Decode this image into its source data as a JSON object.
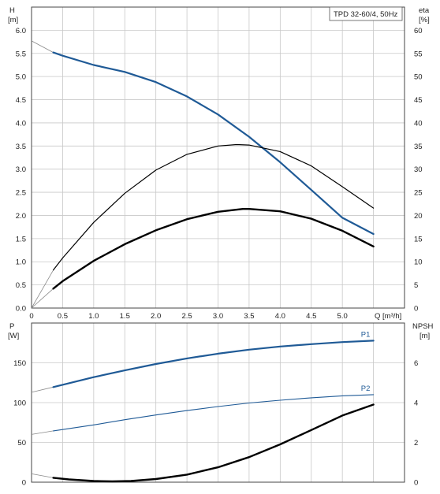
{
  "title": "TPD 32-60/4, 50Hz",
  "colors": {
    "grid": "#c8c8c8",
    "frame": "#444444",
    "blue": "#1f5a96",
    "black": "#000000",
    "thin_extension": "#8a8a8a"
  },
  "chart_data": [
    {
      "type": "line",
      "name": "Head and efficiency",
      "xlabel": "Q [m³/h]",
      "ylabel_left_name": "H",
      "ylabel_left_unit": "[m]",
      "ylabel_right_name": "eta",
      "ylabel_right_unit": "[%]",
      "xlim": [
        0,
        6
      ],
      "ylim_left": [
        0,
        6.5
      ],
      "ylim_right": [
        0,
        65
      ],
      "grid": true,
      "x_ticks": [
        "0",
        "0.5",
        "1.0",
        "1.5",
        "2.0",
        "2.5",
        "3.0",
        "3.5",
        "4.0",
        "4.5",
        "5.0"
      ],
      "y_ticks_left": [
        "0.0",
        "0.5",
        "1.0",
        "1.5",
        "2.0",
        "2.5",
        "3.0",
        "3.5",
        "4.0",
        "4.5",
        "5.0",
        "5.5",
        "6.0"
      ],
      "y_ticks_right": [
        "0",
        "5",
        "10",
        "15",
        "20",
        "25",
        "30",
        "35",
        "40",
        "45",
        "50",
        "55",
        "60"
      ],
      "series": [
        {
          "key": "head",
          "axis": "left",
          "color": "blue",
          "width": 2.2,
          "points": [
            [
              0.35,
              5.52
            ],
            [
              0.5,
              5.45
            ],
            [
              1.0,
              5.25
            ],
            [
              1.5,
              5.1
            ],
            [
              2.0,
              4.88
            ],
            [
              2.5,
              4.57
            ],
            [
              3.0,
              4.18
            ],
            [
              3.5,
              3.7
            ],
            [
              4.0,
              3.15
            ],
            [
              4.5,
              2.55
            ],
            [
              5.0,
              1.95
            ],
            [
              5.5,
              1.6
            ]
          ],
          "extension": [
            [
              0.0,
              5.77
            ],
            [
              0.35,
              5.52
            ]
          ]
        },
        {
          "key": "eta_total",
          "axis": "right",
          "color": "black",
          "width": 1.2,
          "points": [
            [
              0.35,
              8.2
            ],
            [
              0.5,
              10.8
            ],
            [
              1.0,
              18.5
            ],
            [
              1.5,
              24.8
            ],
            [
              2.0,
              29.8
            ],
            [
              2.5,
              33.2
            ],
            [
              3.0,
              35.0
            ],
            [
              3.3,
              35.3
            ],
            [
              3.5,
              35.2
            ],
            [
              4.0,
              33.8
            ],
            [
              4.5,
              30.7
            ],
            [
              5.0,
              26.2
            ],
            [
              5.5,
              21.6
            ]
          ],
          "extension": [
            [
              0.0,
              0.0
            ],
            [
              0.35,
              8.2
            ]
          ]
        },
        {
          "key": "eta_hydraulic",
          "axis": "right",
          "color": "black",
          "width": 2.4,
          "points": [
            [
              0.35,
              4.2
            ],
            [
              0.5,
              5.8
            ],
            [
              1.0,
              10.2
            ],
            [
              1.5,
              13.8
            ],
            [
              2.0,
              16.8
            ],
            [
              2.5,
              19.2
            ],
            [
              3.0,
              20.8
            ],
            [
              3.4,
              21.4
            ],
            [
              3.5,
              21.4
            ],
            [
              4.0,
              20.9
            ],
            [
              4.5,
              19.3
            ],
            [
              5.0,
              16.7
            ],
            [
              5.5,
              13.3
            ]
          ],
          "extension": [
            [
              0.0,
              0.0
            ],
            [
              0.35,
              4.2
            ]
          ]
        }
      ]
    },
    {
      "type": "line",
      "name": "Power and NPSH",
      "ylabel_left_name": "P",
      "ylabel_left_unit": "[W]",
      "ylabel_right_name": "NPSH",
      "ylabel_right_unit": "[m]",
      "xlim": [
        0,
        6
      ],
      "ylim_left": [
        0,
        200
      ],
      "ylim_right": [
        0,
        8
      ],
      "grid": true,
      "y_ticks_left": [
        "0",
        "50",
        "100",
        "150"
      ],
      "y_ticks_right": [
        "0",
        "2",
        "4",
        "6"
      ],
      "series": [
        {
          "key": "P1",
          "label": "P1",
          "axis": "left",
          "color": "blue",
          "width": 2.2,
          "points": [
            [
              0.35,
              119.5
            ],
            [
              1.0,
              132.0
            ],
            [
              1.5,
              140.5
            ],
            [
              2.0,
              148.5
            ],
            [
              2.5,
              155.5
            ],
            [
              3.0,
              161.5
            ],
            [
              3.5,
              166.5
            ],
            [
              4.0,
              170.5
            ],
            [
              4.5,
              173.5
            ],
            [
              5.0,
              176.0
            ],
            [
              5.5,
              177.8
            ]
          ],
          "extension": [
            [
              0.0,
              113.0
            ],
            [
              0.35,
              119.5
            ]
          ]
        },
        {
          "key": "P2",
          "label": "P2",
          "axis": "left",
          "color": "blue",
          "width": 1.1,
          "points": [
            [
              0.35,
              64.5
            ],
            [
              1.0,
              72.0
            ],
            [
              1.5,
              78.5
            ],
            [
              2.0,
              84.5
            ],
            [
              2.5,
              90.0
            ],
            [
              3.0,
              95.0
            ],
            [
              3.5,
              99.5
            ],
            [
              4.0,
              103.0
            ],
            [
              4.5,
              106.0
            ],
            [
              5.0,
              108.5
            ],
            [
              5.5,
              110.0
            ]
          ],
          "extension": [
            [
              0.0,
              60.0
            ],
            [
              0.35,
              64.5
            ]
          ]
        },
        {
          "key": "NPSH",
          "axis": "right",
          "color": "black",
          "width": 2.4,
          "points": [
            [
              0.35,
              0.22
            ],
            [
              0.6,
              0.14
            ],
            [
              1.0,
              0.06
            ],
            [
              1.3,
              0.04
            ],
            [
              1.6,
              0.06
            ],
            [
              2.0,
              0.16
            ],
            [
              2.5,
              0.38
            ],
            [
              3.0,
              0.75
            ],
            [
              3.5,
              1.26
            ],
            [
              4.0,
              1.9
            ],
            [
              4.5,
              2.62
            ],
            [
              5.0,
              3.35
            ],
            [
              5.5,
              3.9
            ]
          ],
          "extension": [
            [
              0.0,
              0.42
            ],
            [
              0.35,
              0.22
            ]
          ]
        }
      ]
    }
  ]
}
